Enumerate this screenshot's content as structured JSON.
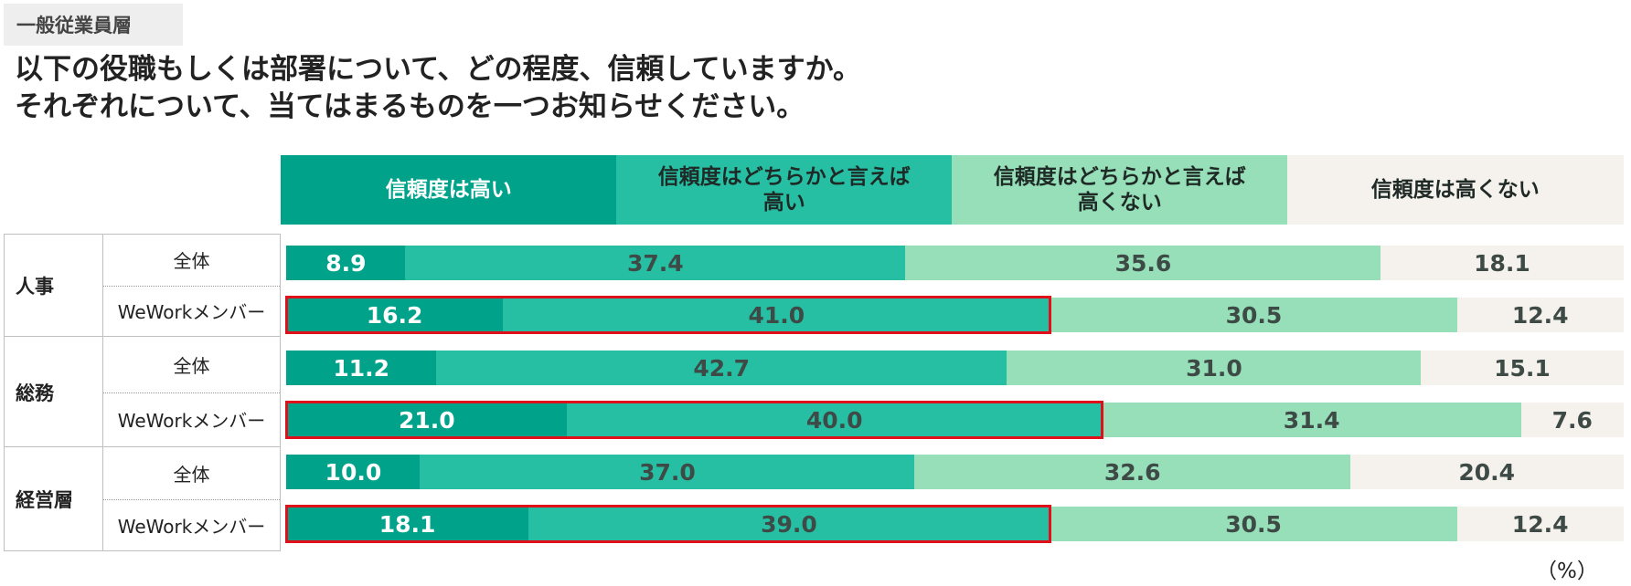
{
  "header": {
    "tag": "一般従業員層",
    "question_line1": "以下の役職もしくは部署について、どの程度、信頼していますか。",
    "question_line2": "それぞれについて、当てはまるものを一つお知らせください。"
  },
  "unit_label": "（%）",
  "colors": {
    "c1": "#00a38a",
    "c2": "#26bfa3",
    "c3": "#96dfb8",
    "c4": "#f5f1ec",
    "highlight": "#e0101a"
  },
  "chart_data": {
    "type": "bar",
    "orientation": "horizontal",
    "stacked": true,
    "title": "以下の役職もしくは部署について、どの程度、信頼していますか。",
    "unit": "%",
    "series_names": [
      "信頼度は高い",
      "信頼度はどちらかと言えば高い",
      "信頼度はどちらかと言えば高くない",
      "信頼度は高くない"
    ],
    "series_labels": [
      "信頼度は高い",
      "信頼度はどちらかと言えば\n高い",
      "信頼度はどちらかと言えば\n高くない",
      "信頼度は高くない"
    ],
    "groups": [
      {
        "name": "人事",
        "rows": [
          {
            "label": "全体",
            "values": [
              8.9,
              37.4,
              35.6,
              18.1
            ],
            "highlight": false
          },
          {
            "label": "WeWorkメンバー",
            "values": [
              16.2,
              41.0,
              30.5,
              12.4
            ],
            "highlight": true
          }
        ]
      },
      {
        "name": "総務",
        "rows": [
          {
            "label": "全体",
            "values": [
              11.2,
              42.7,
              31.0,
              15.1
            ],
            "highlight": false
          },
          {
            "label": "WeWorkメンバー",
            "values": [
              21.0,
              40.0,
              31.4,
              7.6
            ],
            "highlight": true
          }
        ]
      },
      {
        "name": "経営層",
        "rows": [
          {
            "label": "全体",
            "values": [
              10.0,
              37.0,
              32.6,
              20.4
            ],
            "highlight": false
          },
          {
            "label": "WeWorkメンバー",
            "values": [
              18.1,
              39.0,
              30.5,
              12.4
            ],
            "highlight": true
          }
        ]
      }
    ]
  }
}
